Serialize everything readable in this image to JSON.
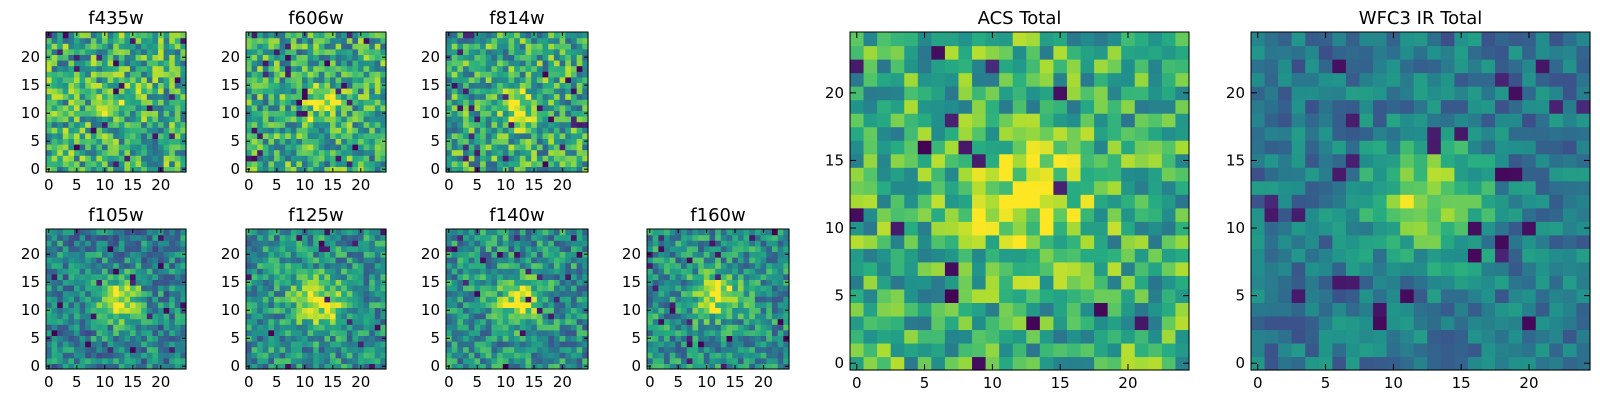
{
  "chart_data": [
    {
      "type": "heatmap",
      "title": "f435w",
      "xticks": [
        "0",
        "5",
        "10",
        "15",
        "20"
      ],
      "yticks": [
        "0",
        "5",
        "10",
        "15",
        "20"
      ],
      "xlim": [
        0,
        24
      ],
      "ylim": [
        0,
        24
      ],
      "grid_size": 25,
      "colormap": "viridis",
      "blob_center": [
        12,
        12
      ],
      "blob_strength": 0.12,
      "blob_width": 3.0,
      "noise_level": 0.3,
      "background_level": 0.62
    },
    {
      "type": "heatmap",
      "title": "f606w",
      "xticks": [
        "0",
        "5",
        "10",
        "15",
        "20"
      ],
      "yticks": [
        "0",
        "5",
        "10",
        "15",
        "20"
      ],
      "xlim": [
        0,
        24
      ],
      "ylim": [
        0,
        24
      ],
      "grid_size": 25,
      "colormap": "viridis",
      "blob_center": [
        12.5,
        11.5
      ],
      "blob_strength": 0.28,
      "blob_width": 2.5,
      "noise_level": 0.3,
      "background_level": 0.6
    },
    {
      "type": "heatmap",
      "title": "f814w",
      "xticks": [
        "0",
        "5",
        "10",
        "15",
        "20"
      ],
      "yticks": [
        "0",
        "5",
        "10",
        "15",
        "20"
      ],
      "xlim": [
        0,
        24
      ],
      "ylim": [
        0,
        24
      ],
      "grid_size": 25,
      "colormap": "viridis",
      "blob_center": [
        13,
        11
      ],
      "blob_strength": 0.3,
      "blob_width": 2.5,
      "noise_level": 0.3,
      "background_level": 0.6
    },
    {
      "type": "heatmap",
      "title": "f105w",
      "xticks": [
        "0",
        "5",
        "10",
        "15",
        "20"
      ],
      "yticks": [
        "0",
        "5",
        "10",
        "15",
        "20"
      ],
      "xlim": [
        0,
        24
      ],
      "ylim": [
        0,
        24
      ],
      "grid_size": 25,
      "colormap": "viridis",
      "blob_center": [
        12.5,
        12
      ],
      "blob_strength": 0.5,
      "blob_width": 2.8,
      "noise_level": 0.24,
      "background_level": 0.45
    },
    {
      "type": "heatmap",
      "title": "f125w",
      "xticks": [
        "0",
        "5",
        "10",
        "15",
        "20"
      ],
      "yticks": [
        "0",
        "5",
        "10",
        "15",
        "20"
      ],
      "xlim": [
        0,
        24
      ],
      "ylim": [
        0,
        24
      ],
      "grid_size": 25,
      "colormap": "viridis",
      "blob_center": [
        12.5,
        11.5
      ],
      "blob_strength": 0.45,
      "blob_width": 3.2,
      "noise_level": 0.24,
      "background_level": 0.5
    },
    {
      "type": "heatmap",
      "title": "f140w",
      "xticks": [
        "0",
        "5",
        "10",
        "15",
        "20"
      ],
      "yticks": [
        "0",
        "5",
        "10",
        "15",
        "20"
      ],
      "xlim": [
        0,
        24
      ],
      "ylim": [
        0,
        24
      ],
      "grid_size": 25,
      "colormap": "viridis",
      "blob_center": [
        12.5,
        11.5
      ],
      "blob_strength": 0.45,
      "blob_width": 2.8,
      "noise_level": 0.24,
      "background_level": 0.5
    },
    {
      "type": "heatmap",
      "title": "f160w",
      "xticks": [
        "0",
        "5",
        "10",
        "15",
        "20"
      ],
      "yticks": [
        "0",
        "5",
        "10",
        "15",
        "20"
      ],
      "xlim": [
        0,
        24
      ],
      "ylim": [
        0,
        24
      ],
      "grid_size": 25,
      "colormap": "viridis",
      "blob_center": [
        12,
        12.5
      ],
      "blob_strength": 0.45,
      "blob_width": 2.8,
      "noise_level": 0.24,
      "background_level": 0.5
    },
    {
      "type": "heatmap",
      "title": "ACS Total",
      "xticks": [
        "0",
        "5",
        "10",
        "15",
        "20"
      ],
      "yticks": [
        "0",
        "5",
        "10",
        "15",
        "20"
      ],
      "xlim": [
        0,
        24
      ],
      "ylim": [
        0,
        24
      ],
      "grid_size": 25,
      "colormap": "viridis",
      "blob_center": [
        12.5,
        12
      ],
      "blob_strength": 0.35,
      "blob_width": 2.8,
      "noise_level": 0.26,
      "background_level": 0.64
    },
    {
      "type": "heatmap",
      "title": "WFC3 IR Total",
      "xticks": [
        "0",
        "5",
        "10",
        "15",
        "20"
      ],
      "yticks": [
        "0",
        "5",
        "10",
        "15",
        "20"
      ],
      "xlim": [
        0,
        24
      ],
      "ylim": [
        0,
        24
      ],
      "grid_size": 25,
      "colormap": "viridis",
      "blob_center": [
        12.5,
        12
      ],
      "blob_strength": 0.5,
      "blob_width": 3.0,
      "noise_level": 0.16,
      "background_level": 0.4
    }
  ]
}
